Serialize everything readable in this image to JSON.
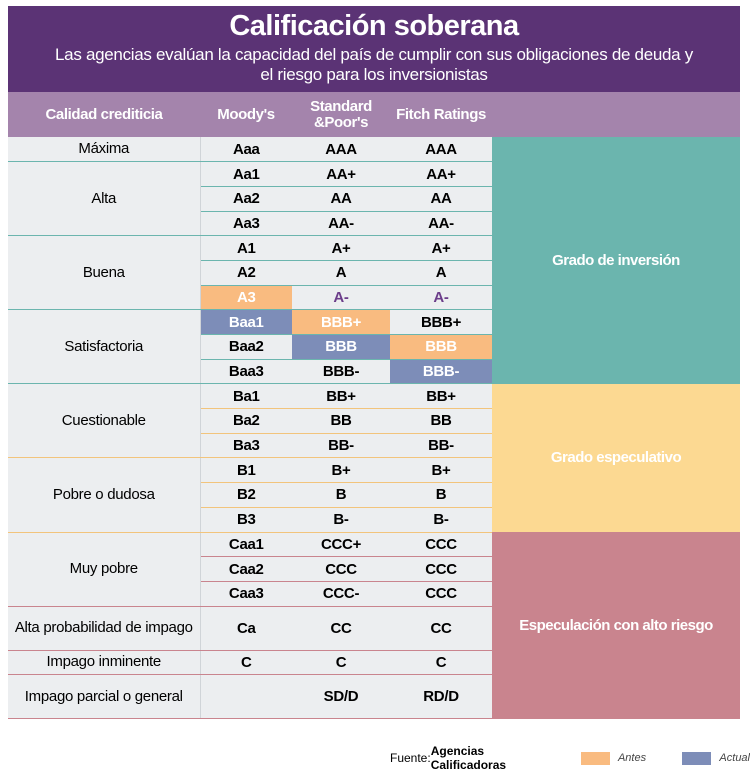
{
  "header": {
    "title": "Calificación soberana",
    "subtitle": "Las agencias evalúan la capacidad del país de cumplir con sus obligaciones de deuda y el riesgo para los inversionistas"
  },
  "table": {
    "columns": [
      "Calidad crediticia",
      "Moody's",
      "Standard &Poor's",
      "Fitch Ratings"
    ],
    "groups": [
      {
        "label": "Máxima",
        "rows": [
          [
            "Aaa",
            "AAA",
            "AAA"
          ]
        ]
      },
      {
        "label": "Alta",
        "rows": [
          [
            "Aa1",
            "AA+",
            "AA+"
          ],
          [
            "Aa2",
            "AA",
            "AA"
          ],
          [
            "Aa3",
            "AA-",
            "AA-"
          ]
        ]
      },
      {
        "label": "Buena",
        "rows": [
          [
            "A1",
            "A+",
            "A+"
          ],
          [
            "A2",
            "A",
            "A"
          ],
          [
            "A3",
            "A-",
            "A-"
          ]
        ]
      },
      {
        "label": "Satisfactoria",
        "rows": [
          [
            "Baa1",
            "BBB+",
            "BBB+"
          ],
          [
            "Baa2",
            "BBB",
            "BBB"
          ],
          [
            "Baa3",
            "BBB-",
            "BBB-"
          ]
        ]
      },
      {
        "label": "Cuestionable",
        "rows": [
          [
            "Ba1",
            "BB+",
            "BB+"
          ],
          [
            "Ba2",
            "BB",
            "BB"
          ],
          [
            "Ba3",
            "BB-",
            "BB-"
          ]
        ]
      },
      {
        "label": "Pobre o dudosa",
        "rows": [
          [
            "B1",
            "B+",
            "B+"
          ],
          [
            "B2",
            "B",
            "B"
          ],
          [
            "B3",
            "B-",
            "B-"
          ]
        ]
      },
      {
        "label": "Muy pobre",
        "rows": [
          [
            "Caa1",
            "CCC+",
            "CCC"
          ],
          [
            "Caa2",
            "CCC",
            "CCC"
          ],
          [
            "Caa3",
            "CCC-",
            "CCC"
          ]
        ]
      },
      {
        "label": "Alta probabilidad de impago",
        "rows": [
          [
            "Ca",
            "CC",
            "CC"
          ]
        ]
      },
      {
        "label": "Impago inminente",
        "rows": [
          [
            "C",
            "C",
            "C"
          ]
        ]
      },
      {
        "label": "Impago parcial o general",
        "rows": [
          [
            null,
            "SD/D",
            "RD/D"
          ]
        ]
      }
    ],
    "grades": [
      "Grado de inversión",
      "Grado especulativo",
      "Especulación con alto riesgo"
    ]
  },
  "footer": {
    "source_label": "Fuente:",
    "source": "Agencias Calificadoras",
    "legend": [
      "Antes",
      "Actual"
    ]
  }
}
